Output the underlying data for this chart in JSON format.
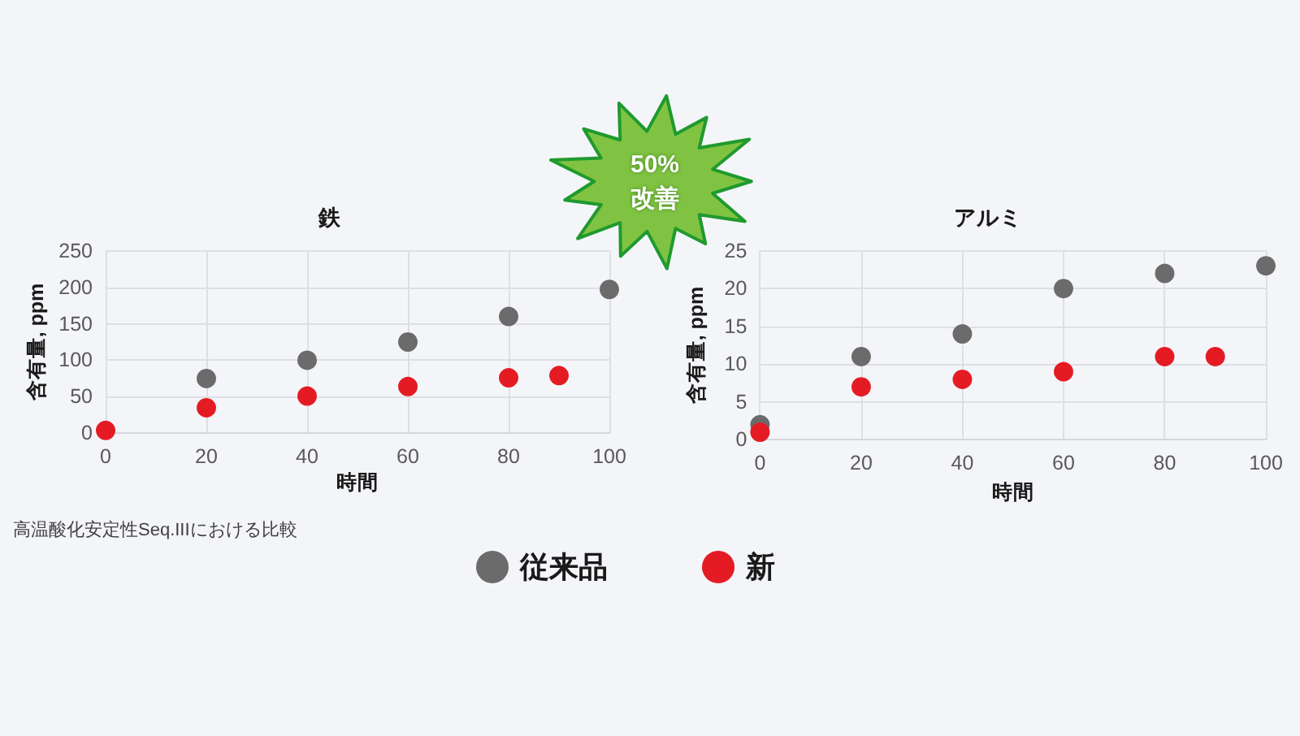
{
  "chart_data": [
    {
      "type": "scatter",
      "title": "鉄",
      "xlabel": "時間",
      "ylabel": "含有量, ppm",
      "xlim": [
        0,
        100
      ],
      "xticks": [
        0,
        20,
        40,
        60,
        80,
        100
      ],
      "ylim": [
        0,
        250
      ],
      "yticks": [
        0,
        50,
        100,
        150,
        200,
        250
      ],
      "grid": true,
      "legend": "bottom",
      "marker": "circle",
      "series": [
        {
          "name": "従来品",
          "color": "#6b6b6b",
          "x": [
            20,
            40,
            60,
            80,
            100
          ],
          "values": [
            75,
            100,
            125,
            160,
            197
          ]
        },
        {
          "name": "新",
          "color": "#e51b24",
          "x": [
            0,
            20,
            40,
            60,
            80,
            90
          ],
          "values": [
            4,
            35,
            51,
            64,
            76,
            79
          ]
        }
      ],
      "annotations": [
        "高温酸化安定性Seq.IIIにおける比較",
        "50%\n改善"
      ]
    },
    {
      "type": "scatter",
      "title": "アルミ",
      "xlabel": "時間",
      "ylabel": "含有量, ppm",
      "xlim": [
        0,
        100
      ],
      "xticks": [
        0,
        20,
        40,
        60,
        80,
        100
      ],
      "ylim": [
        0,
        25
      ],
      "yticks": [
        0,
        5,
        10,
        15,
        20,
        25
      ],
      "grid": true,
      "marker": "circle",
      "series": [
        {
          "color": "#6b6b6b",
          "x": [
            0,
            20,
            40,
            60,
            80,
            100
          ],
          "values": [
            2,
            11,
            14,
            20,
            22,
            23
          ]
        },
        {
          "color": "#e51b24",
          "x": [
            0,
            20,
            40,
            60,
            80,
            90
          ],
          "values": [
            1,
            7,
            8,
            9,
            11,
            11
          ]
        }
      ]
    }
  ]
}
